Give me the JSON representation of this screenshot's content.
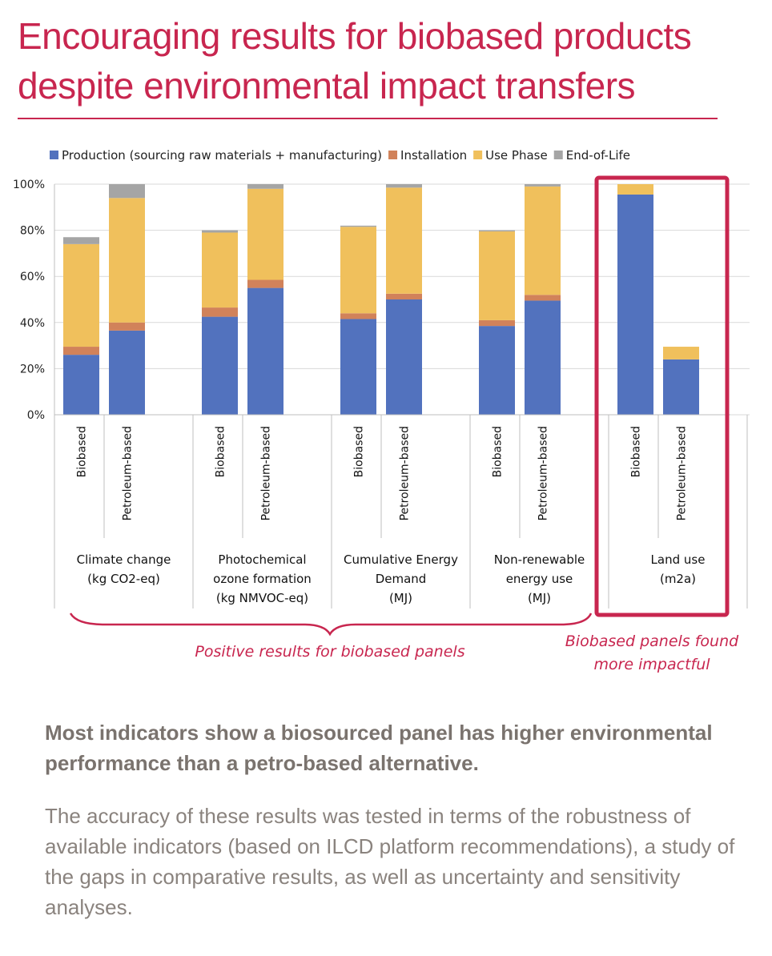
{
  "page": {
    "title": "Encouraging results for biobased products despite environmental impact transfers",
    "headline": "Most indicators show a biosourced panel has higher environmental performance than a petro-based alternative.",
    "body": "The accuracy of these results was tested in terms of the robustness of available indicators (based on ILCD platform recommendations), a study of the gaps in comparative results, as well as uncertainty and sensitivity analyses.",
    "accent_color": "#c8264f"
  },
  "chart_data": {
    "type": "bar",
    "stacked": true,
    "y_axis": {
      "ticks": [
        "0%",
        "20%",
        "40%",
        "60%",
        "80%",
        "100%"
      ],
      "ylim": [
        0,
        100
      ],
      "grid": true
    },
    "legend": {
      "placement": "top"
    },
    "series": [
      {
        "name": "Production (sourcing raw materials + manufacturing)",
        "color": "#5272be"
      },
      {
        "name": "Installation",
        "color": "#d1825a"
      },
      {
        "name": "Use Phase",
        "color": "#f0c05c"
      },
      {
        "name": "End-of-Life",
        "color": "#a5a5a5"
      }
    ],
    "groups": [
      {
        "label": [
          "Climate change",
          "(kg CO2-eq)"
        ],
        "bars": [
          {
            "label": "Biobased",
            "values": [
              26,
              3.5,
              44.5,
              3
            ]
          },
          {
            "label": "Petroleum-based",
            "values": [
              36.5,
              3.5,
              54,
              6
            ]
          }
        ]
      },
      {
        "label": [
          "Photochemical",
          "ozone formation",
          "(kg NMVOC-eq)"
        ],
        "bars": [
          {
            "label": "Biobased",
            "values": [
              42.5,
              4,
              32.5,
              1
            ]
          },
          {
            "label": "Petroleum-based",
            "values": [
              55,
              3.5,
              39.5,
              2
            ]
          }
        ]
      },
      {
        "label": [
          "Cumulative Energy",
          "Demand",
          "(MJ)"
        ],
        "bars": [
          {
            "label": "Biobased",
            "values": [
              41.5,
              2.5,
              37.5,
              0.5
            ]
          },
          {
            "label": "Petroleum-based",
            "values": [
              50,
              2.5,
              46,
              1.5
            ]
          }
        ]
      },
      {
        "label": [
          "Non-renewable",
          "energy use",
          "(MJ)"
        ],
        "bars": [
          {
            "label": "Biobased",
            "values": [
              38.5,
              2.5,
              38.5,
              0.5
            ]
          },
          {
            "label": "Petroleum-based",
            "values": [
              49.5,
              2.5,
              47,
              1
            ]
          }
        ]
      },
      {
        "label": [
          "Land use",
          "(m2a)"
        ],
        "highlighted": true,
        "bars": [
          {
            "label": "Biobased",
            "values": [
              95.5,
              0,
              4.5,
              0
            ]
          },
          {
            "label": "Petroleum-based",
            "values": [
              24,
              0,
              5.5,
              0
            ]
          }
        ]
      }
    ],
    "annotations": [
      {
        "text": "Positive results for biobased panels",
        "applies_to_groups": [
          0,
          1,
          2,
          3
        ]
      },
      {
        "text": [
          "Biobased panels found",
          "more impactful"
        ],
        "applies_to_groups": [
          4
        ]
      }
    ]
  }
}
